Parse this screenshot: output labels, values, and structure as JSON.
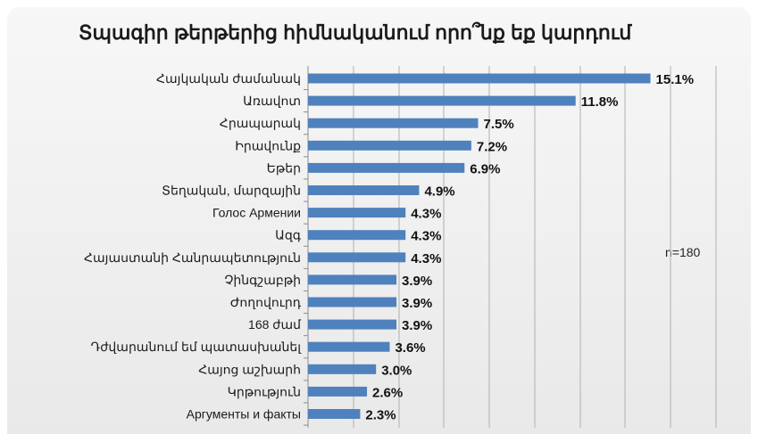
{
  "chart_data": {
    "type": "bar",
    "orientation": "horizontal",
    "title": "Տպագիր թերթերից հիմնականում որո՞նք եք կարդում",
    "note": "n=180",
    "categories": [
      "Հայկական ժամանակ",
      "Առավոտ",
      "Հրապարակ",
      "Իրավունք",
      "Եթեր",
      "Տեղական, մարզային",
      "Голос Армении",
      "Ազգ",
      "Հայաստանի Հանրապետություն",
      "Չինգշաբթի",
      "Ժողովուրդ",
      "168 ժամ",
      "Դժվարանում եմ պատասխանել",
      "Հայոց աշխարհ",
      "Կրթություն",
      "Аргументы и факты"
    ],
    "values": [
      15.1,
      11.8,
      7.5,
      7.2,
      6.9,
      4.9,
      4.3,
      4.3,
      4.3,
      3.9,
      3.9,
      3.9,
      3.6,
      3.0,
      2.6,
      2.3
    ],
    "value_labels": [
      "15.1%",
      "11.8%",
      "7.5%",
      "7.2%",
      "6.9%",
      "4.9%",
      "4.3%",
      "4.3%",
      "4.3%",
      "3.9%",
      "3.9%",
      "3.9%",
      "3.6%",
      "3.0%",
      "2.6%",
      "2.3%"
    ],
    "xlim": [
      0,
      17
    ],
    "grid": true,
    "bar_color": "#4f81bd"
  }
}
